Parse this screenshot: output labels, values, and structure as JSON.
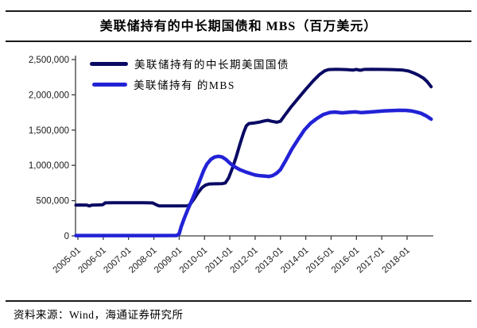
{
  "title": "美联储持有的中长期国债和 MBS（百万美元）",
  "source_note": "资料来源：Wind，海通证券研究所",
  "chart_data": {
    "type": "line",
    "title": "美联储持有的中长期国债和 MBS（百万美元）",
    "xlabel": "",
    "ylabel": "",
    "unit": "百万美元",
    "grid": false,
    "legend_position": "top-left-inside",
    "axis_color": "#3d3d3d",
    "ylim": [
      0,
      2500000
    ],
    "y_ticks": [
      0,
      500000,
      1000000,
      1500000,
      2000000,
      2500000
    ],
    "y_tick_labels": [
      "0",
      "500,000",
      "1,000,000",
      "1,500,000",
      "2,000,000",
      "2,500,000"
    ],
    "x_tick_labels": [
      "2005-01",
      "2006-01",
      "2007-01",
      "2008-01",
      "2009-01",
      "2010-01",
      "2011-01",
      "2012-01",
      "2013-01",
      "2014-01",
      "2015-01",
      "2016-01",
      "2017-01",
      "2018-01"
    ],
    "x_tick_years": [
      2005,
      2006,
      2007,
      2008,
      2009,
      2010,
      2011,
      2012,
      2013,
      2014,
      2015,
      2016,
      2017,
      2018
    ],
    "x_range_years": [
      2004.9,
      2019.03
    ],
    "series": [
      {
        "name": "美联储持有的中长期美国国债",
        "color": "#0a0a64",
        "stroke_width": 4,
        "points": [
          [
            2004.92,
            437000
          ],
          [
            2005.1,
            438000
          ],
          [
            2005.35,
            437000
          ],
          [
            2005.45,
            424000
          ],
          [
            2005.55,
            436000
          ],
          [
            2005.75,
            438000
          ],
          [
            2005.98,
            441000
          ],
          [
            2006.08,
            469000
          ],
          [
            2006.4,
            471000
          ],
          [
            2006.8,
            470000
          ],
          [
            2007.2,
            471000
          ],
          [
            2007.6,
            470000
          ],
          [
            2007.95,
            467000
          ],
          [
            2008.1,
            440000
          ],
          [
            2008.2,
            426000
          ],
          [
            2008.6,
            424000
          ],
          [
            2009.0,
            425000
          ],
          [
            2009.35,
            427000
          ],
          [
            2009.45,
            455000
          ],
          [
            2009.6,
            530000
          ],
          [
            2009.75,
            615000
          ],
          [
            2009.9,
            685000
          ],
          [
            2010.05,
            722000
          ],
          [
            2010.2,
            736000
          ],
          [
            2010.45,
            739000
          ],
          [
            2010.7,
            741000
          ],
          [
            2010.82,
            750000
          ],
          [
            2010.95,
            820000
          ],
          [
            2011.1,
            960000
          ],
          [
            2011.25,
            1120000
          ],
          [
            2011.4,
            1300000
          ],
          [
            2011.55,
            1470000
          ],
          [
            2011.65,
            1560000
          ],
          [
            2011.75,
            1592000
          ],
          [
            2011.95,
            1600000
          ],
          [
            2012.15,
            1612000
          ],
          [
            2012.35,
            1630000
          ],
          [
            2012.5,
            1638000
          ],
          [
            2012.65,
            1625000
          ],
          [
            2012.85,
            1612000
          ],
          [
            2013.0,
            1625000
          ],
          [
            2013.15,
            1700000
          ],
          [
            2013.4,
            1820000
          ],
          [
            2013.7,
            1950000
          ],
          [
            2014.0,
            2080000
          ],
          [
            2014.3,
            2200000
          ],
          [
            2014.55,
            2290000
          ],
          [
            2014.75,
            2340000
          ],
          [
            2014.9,
            2358000
          ],
          [
            2015.2,
            2362000
          ],
          [
            2015.6,
            2358000
          ],
          [
            2015.85,
            2350000
          ],
          [
            2016.0,
            2360000
          ],
          [
            2016.15,
            2348000
          ],
          [
            2016.3,
            2360000
          ],
          [
            2016.6,
            2363000
          ],
          [
            2017.0,
            2360000
          ],
          [
            2017.4,
            2358000
          ],
          [
            2017.8,
            2352000
          ],
          [
            2018.05,
            2338000
          ],
          [
            2018.25,
            2312000
          ],
          [
            2018.45,
            2278000
          ],
          [
            2018.65,
            2235000
          ],
          [
            2018.8,
            2185000
          ],
          [
            2018.95,
            2115000
          ]
        ]
      },
      {
        "name": "美联储持有 的MBS",
        "color": "#2222d6",
        "stroke_width": 4.5,
        "points": [
          [
            2004.92,
            5000
          ],
          [
            2006.0,
            5000
          ],
          [
            2007.0,
            5000
          ],
          [
            2008.0,
            5000
          ],
          [
            2008.9,
            6000
          ],
          [
            2009.0,
            30000
          ],
          [
            2009.08,
            130000
          ],
          [
            2009.2,
            250000
          ],
          [
            2009.33,
            365000
          ],
          [
            2009.47,
            480000
          ],
          [
            2009.6,
            590000
          ],
          [
            2009.73,
            710000
          ],
          [
            2009.85,
            820000
          ],
          [
            2009.97,
            930000
          ],
          [
            2010.1,
            1020000
          ],
          [
            2010.25,
            1085000
          ],
          [
            2010.4,
            1118000
          ],
          [
            2010.55,
            1128000
          ],
          [
            2010.7,
            1118000
          ],
          [
            2010.85,
            1082000
          ],
          [
            2011.0,
            1032000
          ],
          [
            2011.2,
            978000
          ],
          [
            2011.4,
            938000
          ],
          [
            2011.6,
            910000
          ],
          [
            2011.8,
            885000
          ],
          [
            2012.0,
            863000
          ],
          [
            2012.2,
            852000
          ],
          [
            2012.4,
            847000
          ],
          [
            2012.55,
            842000
          ],
          [
            2012.7,
            856000
          ],
          [
            2012.85,
            888000
          ],
          [
            2013.0,
            940000
          ],
          [
            2013.2,
            1065000
          ],
          [
            2013.45,
            1230000
          ],
          [
            2013.7,
            1370000
          ],
          [
            2013.95,
            1505000
          ],
          [
            2014.2,
            1600000
          ],
          [
            2014.45,
            1668000
          ],
          [
            2014.7,
            1722000
          ],
          [
            2014.95,
            1750000
          ],
          [
            2015.15,
            1756000
          ],
          [
            2015.45,
            1744000
          ],
          [
            2015.7,
            1752000
          ],
          [
            2015.95,
            1758000
          ],
          [
            2016.2,
            1748000
          ],
          [
            2016.5,
            1756000
          ],
          [
            2016.8,
            1764000
          ],
          [
            2017.1,
            1772000
          ],
          [
            2017.4,
            1776000
          ],
          [
            2017.7,
            1780000
          ],
          [
            2017.95,
            1779000
          ],
          [
            2018.15,
            1773000
          ],
          [
            2018.35,
            1758000
          ],
          [
            2018.55,
            1738000
          ],
          [
            2018.75,
            1703000
          ],
          [
            2018.95,
            1655000
          ]
        ]
      }
    ]
  }
}
